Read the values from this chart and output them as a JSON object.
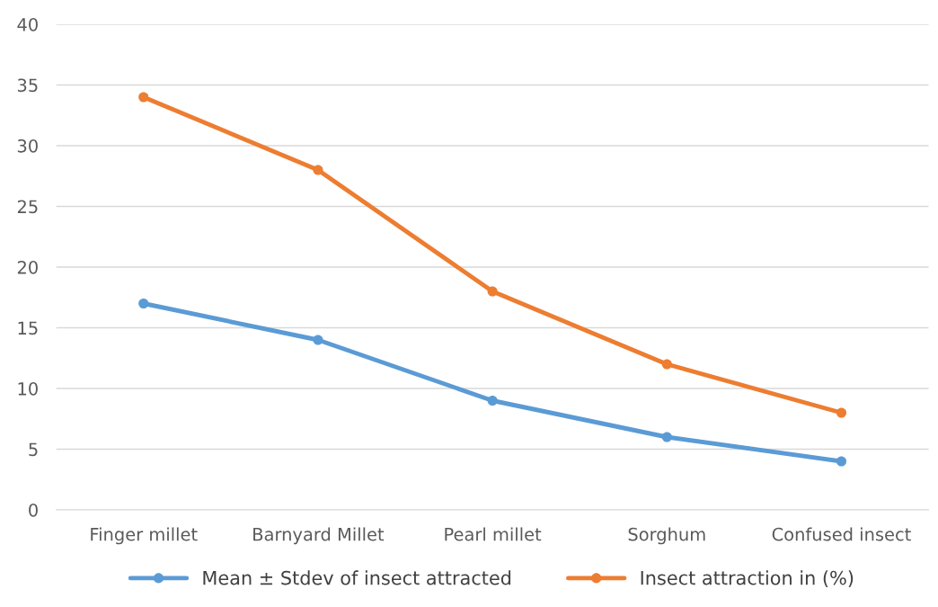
{
  "chart_data": {
    "type": "line",
    "categories": [
      "Finger millet",
      "Barnyard Millet",
      "Pearl millet",
      "Sorghum",
      "Confused insect"
    ],
    "series": [
      {
        "name": "Mean ± Stdev of insect attracted",
        "color": "#5b9bd5",
        "values": [
          17,
          14,
          9,
          6,
          4
        ]
      },
      {
        "name": "Insect attraction in (%)",
        "color": "#ed7d31",
        "values": [
          34,
          28,
          18,
          12,
          8
        ]
      }
    ],
    "ylim": [
      0,
      40
    ],
    "yticks": [
      0,
      5,
      10,
      15,
      20,
      25,
      30,
      35,
      40
    ],
    "grid": "y",
    "legend": "bottom",
    "marker": "circle",
    "line_style": "solid"
  }
}
